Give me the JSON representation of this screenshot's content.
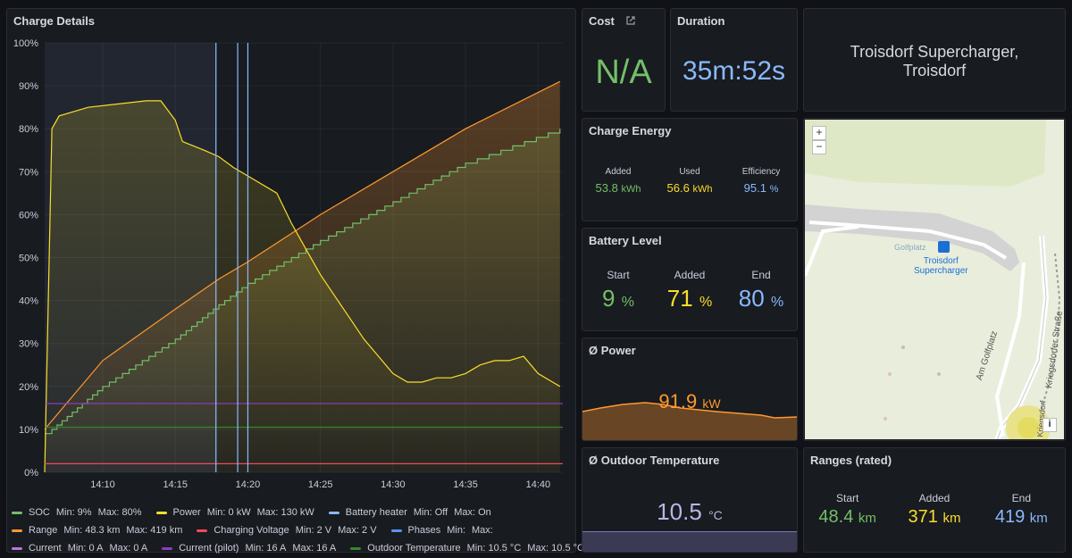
{
  "panels": {
    "charge_details": {
      "title": "Charge Details"
    },
    "cost": {
      "title": "Cost",
      "value": "N/A"
    },
    "duration": {
      "title": "Duration",
      "value": "35m:52s"
    },
    "location": {
      "line1": "Troisdorf Supercharger,",
      "line2": "Troisdorf"
    },
    "charge_energy": {
      "title": "Charge Energy",
      "added_label": "Added",
      "added_value": "53.8",
      "added_unit": "kWh",
      "used_label": "Used",
      "used_value": "56.6",
      "used_unit": "kWh",
      "eff_label": "Efficiency",
      "eff_value": "95.1",
      "eff_unit": "%"
    },
    "battery_level": {
      "title": "Battery Level",
      "start_label": "Start",
      "start_value": "9",
      "start_unit": "%",
      "added_label": "Added",
      "added_value": "71",
      "added_unit": "%",
      "end_label": "End",
      "end_value": "80",
      "end_unit": "%"
    },
    "avg_power": {
      "title": "Ø Power",
      "value": "91.9",
      "unit": "kW"
    },
    "outdoor_temp": {
      "title": "Ø Outdoor Temperature",
      "value": "10.5",
      "unit": "°C"
    },
    "ranges": {
      "title": "Ranges (rated)",
      "start_label": "Start",
      "start_value": "48.4",
      "start_unit": "km",
      "added_label": "Added",
      "added_value": "371",
      "added_unit": "km",
      "end_label": "End",
      "end_value": "419",
      "end_unit": "km"
    },
    "map": {
      "zoom_in": "+",
      "zoom_out": "−",
      "info": "i",
      "poi_label": "Golfplatz",
      "marker_label_1": "Troisdorf",
      "marker_label_2": "Supercharger",
      "street_1": "Am Golfplatz",
      "street_2": "Kriegsdorfer Straße",
      "street_3": "Kriegsdorf"
    }
  },
  "legend": [
    [
      {
        "name": "SOC",
        "color": "#73bf69",
        "min": "Min: 9%",
        "max": "Max: 80%"
      },
      {
        "name": "Power",
        "color": "#fade2a",
        "min": "Min: 0 kW",
        "max": "Max: 130 kW"
      },
      {
        "name": "Battery heater",
        "color": "#8ab8ff",
        "min": "Min: Off",
        "max": "Max: On"
      }
    ],
    [
      {
        "name": "Range",
        "color": "#ff9830",
        "min": "Min: 48.3 km",
        "max": "Max: 419 km"
      },
      {
        "name": "Charging Voltage",
        "color": "#f2495c",
        "min": "Min: 2 V",
        "max": "Max: 2 V"
      },
      {
        "name": "Phases",
        "color": "#5794f2",
        "min": "Min:",
        "max": "Max:"
      }
    ],
    [
      {
        "name": "Current",
        "color": "#b877d9",
        "min": "Min: 0 A",
        "max": "Max: 0 A"
      },
      {
        "name": "Current (pilot)",
        "color": "#8f3bb8",
        "min": "Min: 16 A",
        "max": "Max: 16 A"
      },
      {
        "name": "Outdoor Temperature",
        "color": "#37872d",
        "min": "Min: 10.5 °C",
        "max": "Max: 10.5 °C"
      }
    ]
  ],
  "chart_data": {
    "type": "line",
    "title": "Charge Details",
    "x_labels": [
      "14:10",
      "14:15",
      "14:20",
      "14:25",
      "14:30",
      "14:35",
      "14:40"
    ],
    "x_ticks_minutes": [
      10,
      15,
      20,
      25,
      30,
      35,
      40
    ],
    "x_range_minutes": [
      6,
      41.7
    ],
    "y_labels": [
      "100%",
      "90%",
      "80%",
      "70%",
      "60%",
      "50%",
      "40%",
      "30%",
      "20%",
      "10%",
      "0%"
    ],
    "y_range": [
      0,
      100
    ],
    "series": [
      {
        "name": "SOC",
        "color": "#73bf69",
        "x": [
          6,
          6.5,
          10,
          15,
          18,
          20,
          25,
          30,
          35,
          41.5
        ],
        "y": [
          9,
          10,
          20,
          31,
          39,
          44,
          54,
          63,
          72,
          80
        ]
      },
      {
        "name": "Range",
        "color": "#ff9830",
        "x": [
          6,
          10,
          15,
          18,
          20,
          25,
          30,
          35,
          41.5
        ],
        "y": [
          10,
          26,
          38,
          45,
          49,
          60,
          70,
          80,
          91
        ]
      },
      {
        "name": "Power",
        "color": "#fade2a",
        "x": [
          6,
          6.5,
          7,
          9,
          13,
          14,
          15,
          15.5,
          17,
          18,
          19,
          20,
          22,
          23,
          24,
          25,
          26,
          27,
          28,
          29,
          30,
          31,
          32,
          33,
          34,
          35,
          36,
          37,
          38,
          39,
          40,
          41,
          41.5
        ],
        "y": [
          0,
          80,
          83,
          85,
          86.5,
          86.5,
          82,
          77,
          75,
          73.5,
          71,
          69,
          65,
          58,
          52,
          46,
          41,
          36,
          31,
          27,
          23,
          21,
          21,
          22,
          22,
          23,
          25,
          26,
          26,
          27,
          23,
          21,
          20
        ]
      },
      {
        "name": "Current (pilot)",
        "color": "#8f3bb8",
        "x": [
          6,
          41.7
        ],
        "y": [
          16,
          16
        ]
      },
      {
        "name": "Outdoor Temperature",
        "color": "#37872d",
        "x": [
          6,
          41.7
        ],
        "y": [
          10.5,
          10.5
        ]
      },
      {
        "name": "Charging Voltage",
        "color": "#f2495c",
        "x": [
          6,
          41.7
        ],
        "y": [
          2,
          2
        ]
      }
    ],
    "vertical_markers_minutes": [
      17.8,
      19.3,
      20.0
    ]
  }
}
